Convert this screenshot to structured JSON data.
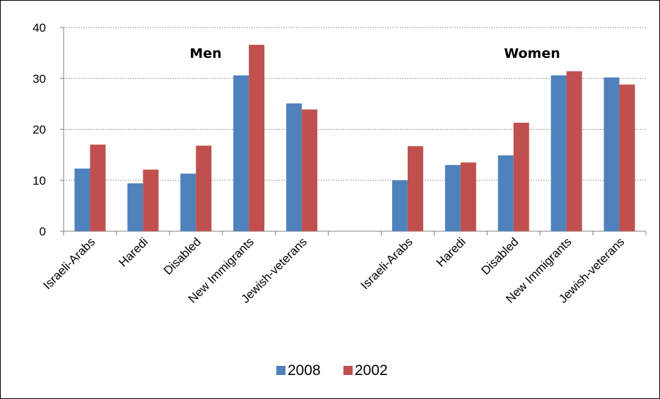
{
  "chart_data": {
    "type": "bar",
    "title": "",
    "xlabel": "",
    "ylabel": "",
    "ylim": [
      0,
      40
    ],
    "yticks": [
      0,
      10,
      20,
      30,
      40
    ],
    "grid": "horizontal dotted",
    "legend_position": "bottom",
    "groups": [
      {
        "label": "Men",
        "categories": [
          "Israeli-Arabs",
          "Haredi",
          "Disabled",
          "New Immigrants",
          "Jewish-veterans"
        ]
      },
      {
        "label": "Women",
        "categories": [
          "Israeli-Arabs",
          "Haredi",
          "Disabled",
          "New Immigrants",
          "Jewish-veterans"
        ]
      }
    ],
    "series": [
      {
        "name": "2008",
        "color": "#4F81BD",
        "values": [
          12.3,
          9.4,
          11.3,
          30.6,
          25.1,
          10.0,
          13.0,
          14.9,
          30.6,
          30.2
        ]
      },
      {
        "name": "2002",
        "color": "#C0504D",
        "values": [
          17.0,
          12.1,
          16.8,
          36.6,
          23.9,
          16.7,
          13.5,
          21.3,
          31.4,
          28.8
        ]
      }
    ]
  }
}
